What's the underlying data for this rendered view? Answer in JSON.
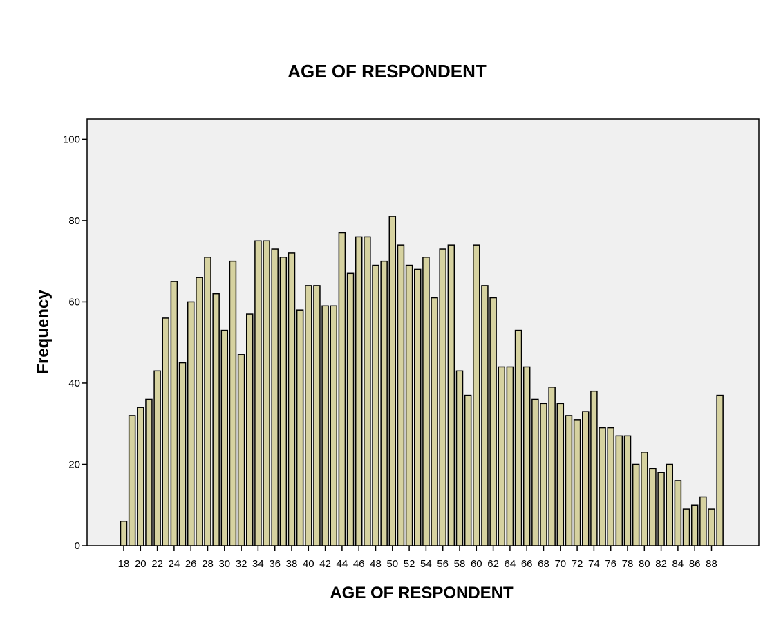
{
  "chart_data": {
    "type": "bar",
    "title": "AGE OF RESPONDENT",
    "xlabel": "AGE OF RESPONDENT",
    "ylabel": "Frequency",
    "ylim": [
      0,
      105
    ],
    "yticks": [
      0,
      20,
      40,
      60,
      80,
      100
    ],
    "grid": false,
    "legend": "none",
    "categories": [
      18,
      19,
      20,
      21,
      22,
      23,
      24,
      25,
      26,
      27,
      28,
      29,
      30,
      31,
      32,
      33,
      34,
      35,
      36,
      37,
      38,
      39,
      40,
      41,
      42,
      43,
      44,
      45,
      46,
      47,
      48,
      49,
      50,
      51,
      52,
      53,
      54,
      55,
      56,
      57,
      58,
      59,
      60,
      61,
      62,
      63,
      64,
      65,
      66,
      67,
      68,
      69,
      70,
      71,
      72,
      73,
      74,
      75,
      76,
      77,
      78,
      79,
      80,
      81,
      82,
      83,
      84,
      85,
      86,
      87,
      88,
      89
    ],
    "xtick_labels": [
      "18",
      "20",
      "22",
      "24",
      "26",
      "28",
      "30",
      "32",
      "34",
      "36",
      "38",
      "40",
      "42",
      "44",
      "46",
      "48",
      "50",
      "52",
      "54",
      "56",
      "58",
      "60",
      "62",
      "64",
      "66",
      "68",
      "70",
      "72",
      "74",
      "76",
      "78",
      "80",
      "82",
      "84",
      "86",
      "88"
    ],
    "values": [
      6,
      32,
      34,
      36,
      43,
      56,
      65,
      45,
      60,
      66,
      71,
      62,
      53,
      70,
      47,
      57,
      75,
      75,
      73,
      71,
      72,
      58,
      64,
      64,
      59,
      59,
      77,
      67,
      76,
      76,
      69,
      70,
      81,
      74,
      69,
      68,
      71,
      61,
      73,
      74,
      43,
      37,
      74,
      64,
      61,
      44,
      44,
      53,
      44,
      36,
      35,
      39,
      35,
      32,
      31,
      33,
      38,
      29,
      29,
      27,
      27,
      20,
      23,
      19,
      18,
      20,
      16,
      9,
      10,
      12,
      9,
      37
    ],
    "colors": {
      "bar_fill": "#d6d2a0",
      "bar_stroke": "#000000",
      "plot_background": "#f0f0f0",
      "page_background": "#ffffff"
    }
  }
}
